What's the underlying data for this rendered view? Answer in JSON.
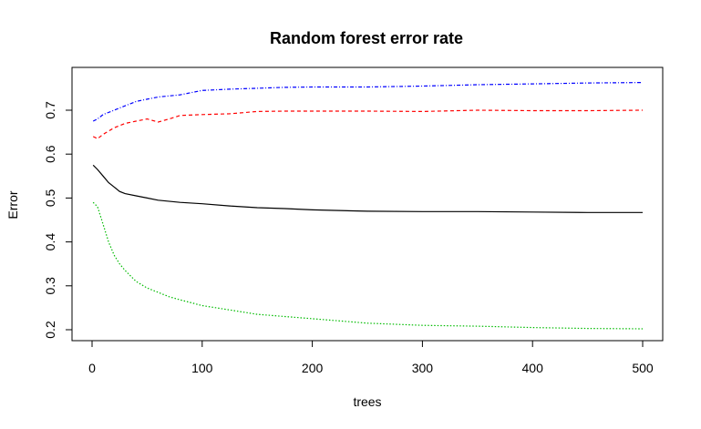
{
  "chart_data": {
    "type": "line",
    "title": "Random forest error rate",
    "xlabel": "trees",
    "ylabel": "Error",
    "xlim": [
      0,
      500
    ],
    "ylim": [
      0.2,
      0.75
    ],
    "xticks": [
      0,
      100,
      200,
      300,
      400,
      500
    ],
    "xtick_labels": [
      "0",
      "100",
      "200",
      "300",
      "400",
      "500"
    ],
    "yticks": [
      0.2,
      0.3,
      0.4,
      0.5,
      0.6,
      0.7
    ],
    "ytick_labels": [
      "0.2",
      "0.3",
      "0.4",
      "0.5",
      "0.6",
      "0.7"
    ],
    "grid": false,
    "legend": "none",
    "series": [
      {
        "color": "#0000ff",
        "dash": "dash-dot",
        "x": [
          1,
          5,
          10,
          20,
          30,
          40,
          50,
          60,
          80,
          100,
          125,
          150,
          175,
          200,
          250,
          300,
          350,
          400,
          450,
          500
        ],
        "values": [
          0.675,
          0.68,
          0.69,
          0.7,
          0.71,
          0.72,
          0.725,
          0.73,
          0.735,
          0.745,
          0.748,
          0.75,
          0.752,
          0.753,
          0.753,
          0.755,
          0.758,
          0.76,
          0.762,
          0.763
        ]
      },
      {
        "color": "#ff0000",
        "dash": "dashed",
        "x": [
          1,
          5,
          10,
          20,
          30,
          40,
          50,
          60,
          70,
          80,
          100,
          125,
          150,
          175,
          200,
          250,
          300,
          350,
          400,
          450,
          500
        ],
        "values": [
          0.64,
          0.635,
          0.645,
          0.66,
          0.67,
          0.675,
          0.68,
          0.673,
          0.68,
          0.688,
          0.69,
          0.692,
          0.697,
          0.698,
          0.698,
          0.698,
          0.697,
          0.7,
          0.699,
          0.699,
          0.7
        ]
      },
      {
        "color": "#000000",
        "dash": "solid",
        "x": [
          1,
          5,
          10,
          15,
          20,
          25,
          30,
          40,
          50,
          60,
          80,
          100,
          125,
          150,
          175,
          200,
          250,
          300,
          350,
          400,
          450,
          500
        ],
        "values": [
          0.575,
          0.565,
          0.55,
          0.535,
          0.525,
          0.515,
          0.51,
          0.505,
          0.5,
          0.495,
          0.49,
          0.487,
          0.482,
          0.478,
          0.476,
          0.473,
          0.47,
          0.469,
          0.469,
          0.468,
          0.467,
          0.467
        ]
      },
      {
        "color": "#00bb00",
        "dash": "dotted",
        "x": [
          1,
          5,
          10,
          15,
          20,
          25,
          30,
          40,
          50,
          60,
          70,
          80,
          100,
          125,
          150,
          175,
          200,
          250,
          300,
          350,
          400,
          450,
          500
        ],
        "values": [
          0.49,
          0.48,
          0.44,
          0.4,
          0.37,
          0.35,
          0.335,
          0.31,
          0.295,
          0.285,
          0.275,
          0.268,
          0.255,
          0.245,
          0.235,
          0.23,
          0.225,
          0.215,
          0.21,
          0.208,
          0.205,
          0.203,
          0.202
        ]
      }
    ]
  }
}
